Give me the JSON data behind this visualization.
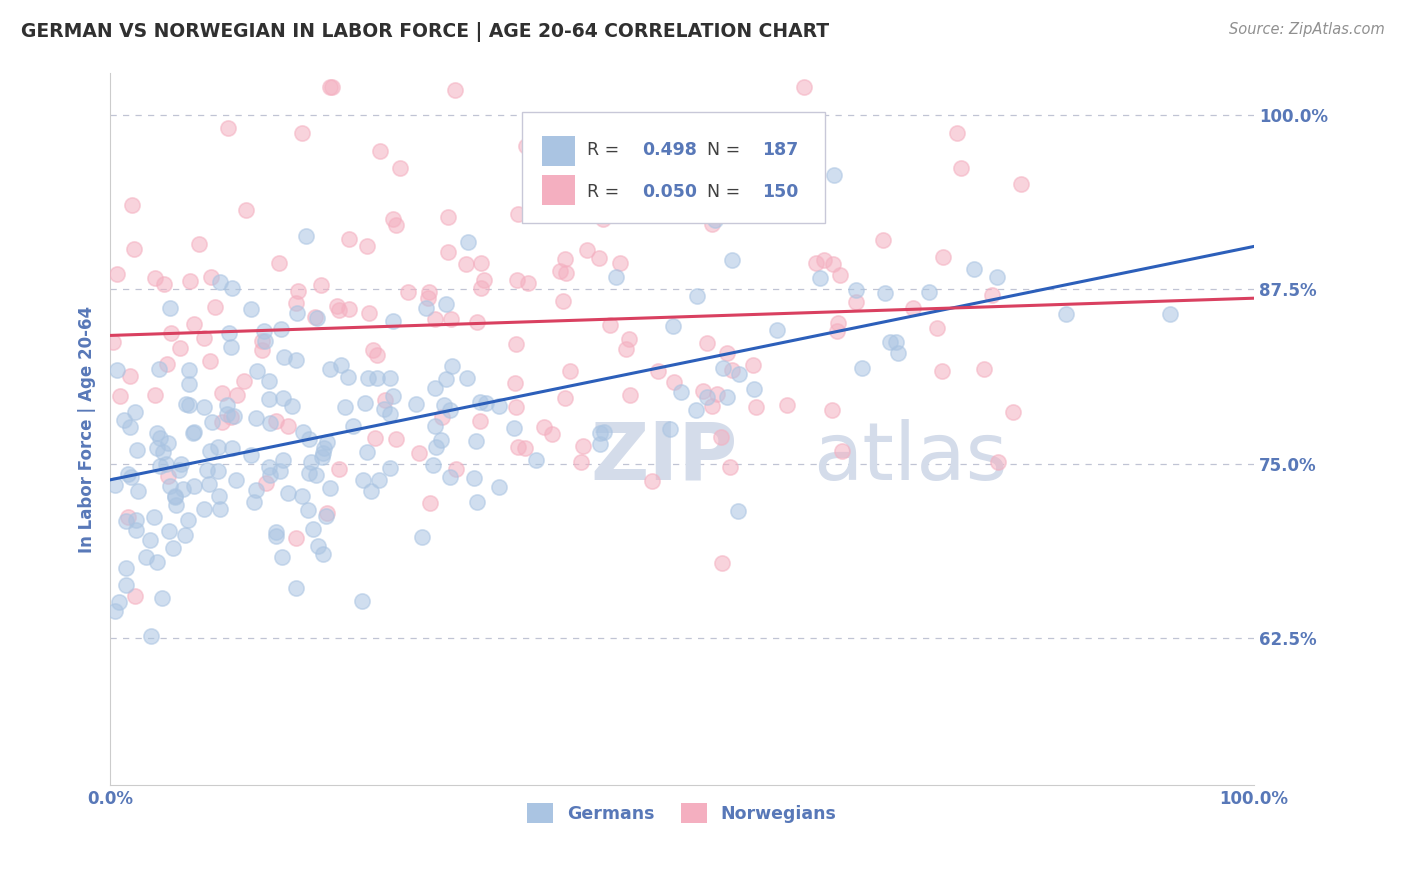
{
  "title": "GERMAN VS NORWEGIAN IN LABOR FORCE | AGE 20-64 CORRELATION CHART",
  "source_text": "Source: ZipAtlas.com",
  "ylabel": "In Labor Force | Age 20-64",
  "xlim": [
    0.0,
    1.0
  ],
  "ylim": [
    0.52,
    1.03
  ],
  "yticks": [
    0.625,
    0.75,
    0.875,
    1.0
  ],
  "ytick_labels": [
    "62.5%",
    "75.0%",
    "87.5%",
    "100.0%"
  ],
  "xtick_labels": [
    "0.0%",
    "100.0%"
  ],
  "german_R": 0.498,
  "german_N": 187,
  "norwegian_R": 0.05,
  "norwegian_N": 150,
  "german_color": "#aac4e2",
  "norwegian_color": "#f4afc0",
  "german_line_color": "#2c5fba",
  "norwegian_line_color": "#d94060",
  "legend_label_german": "Germans",
  "legend_label_norwegian": "Norwegians",
  "background_color": "#ffffff",
  "grid_color": "#c0c4d4",
  "title_color": "#303030",
  "label_color": "#5878b8",
  "watermark_color": "#d4dcea",
  "seed": 42
}
